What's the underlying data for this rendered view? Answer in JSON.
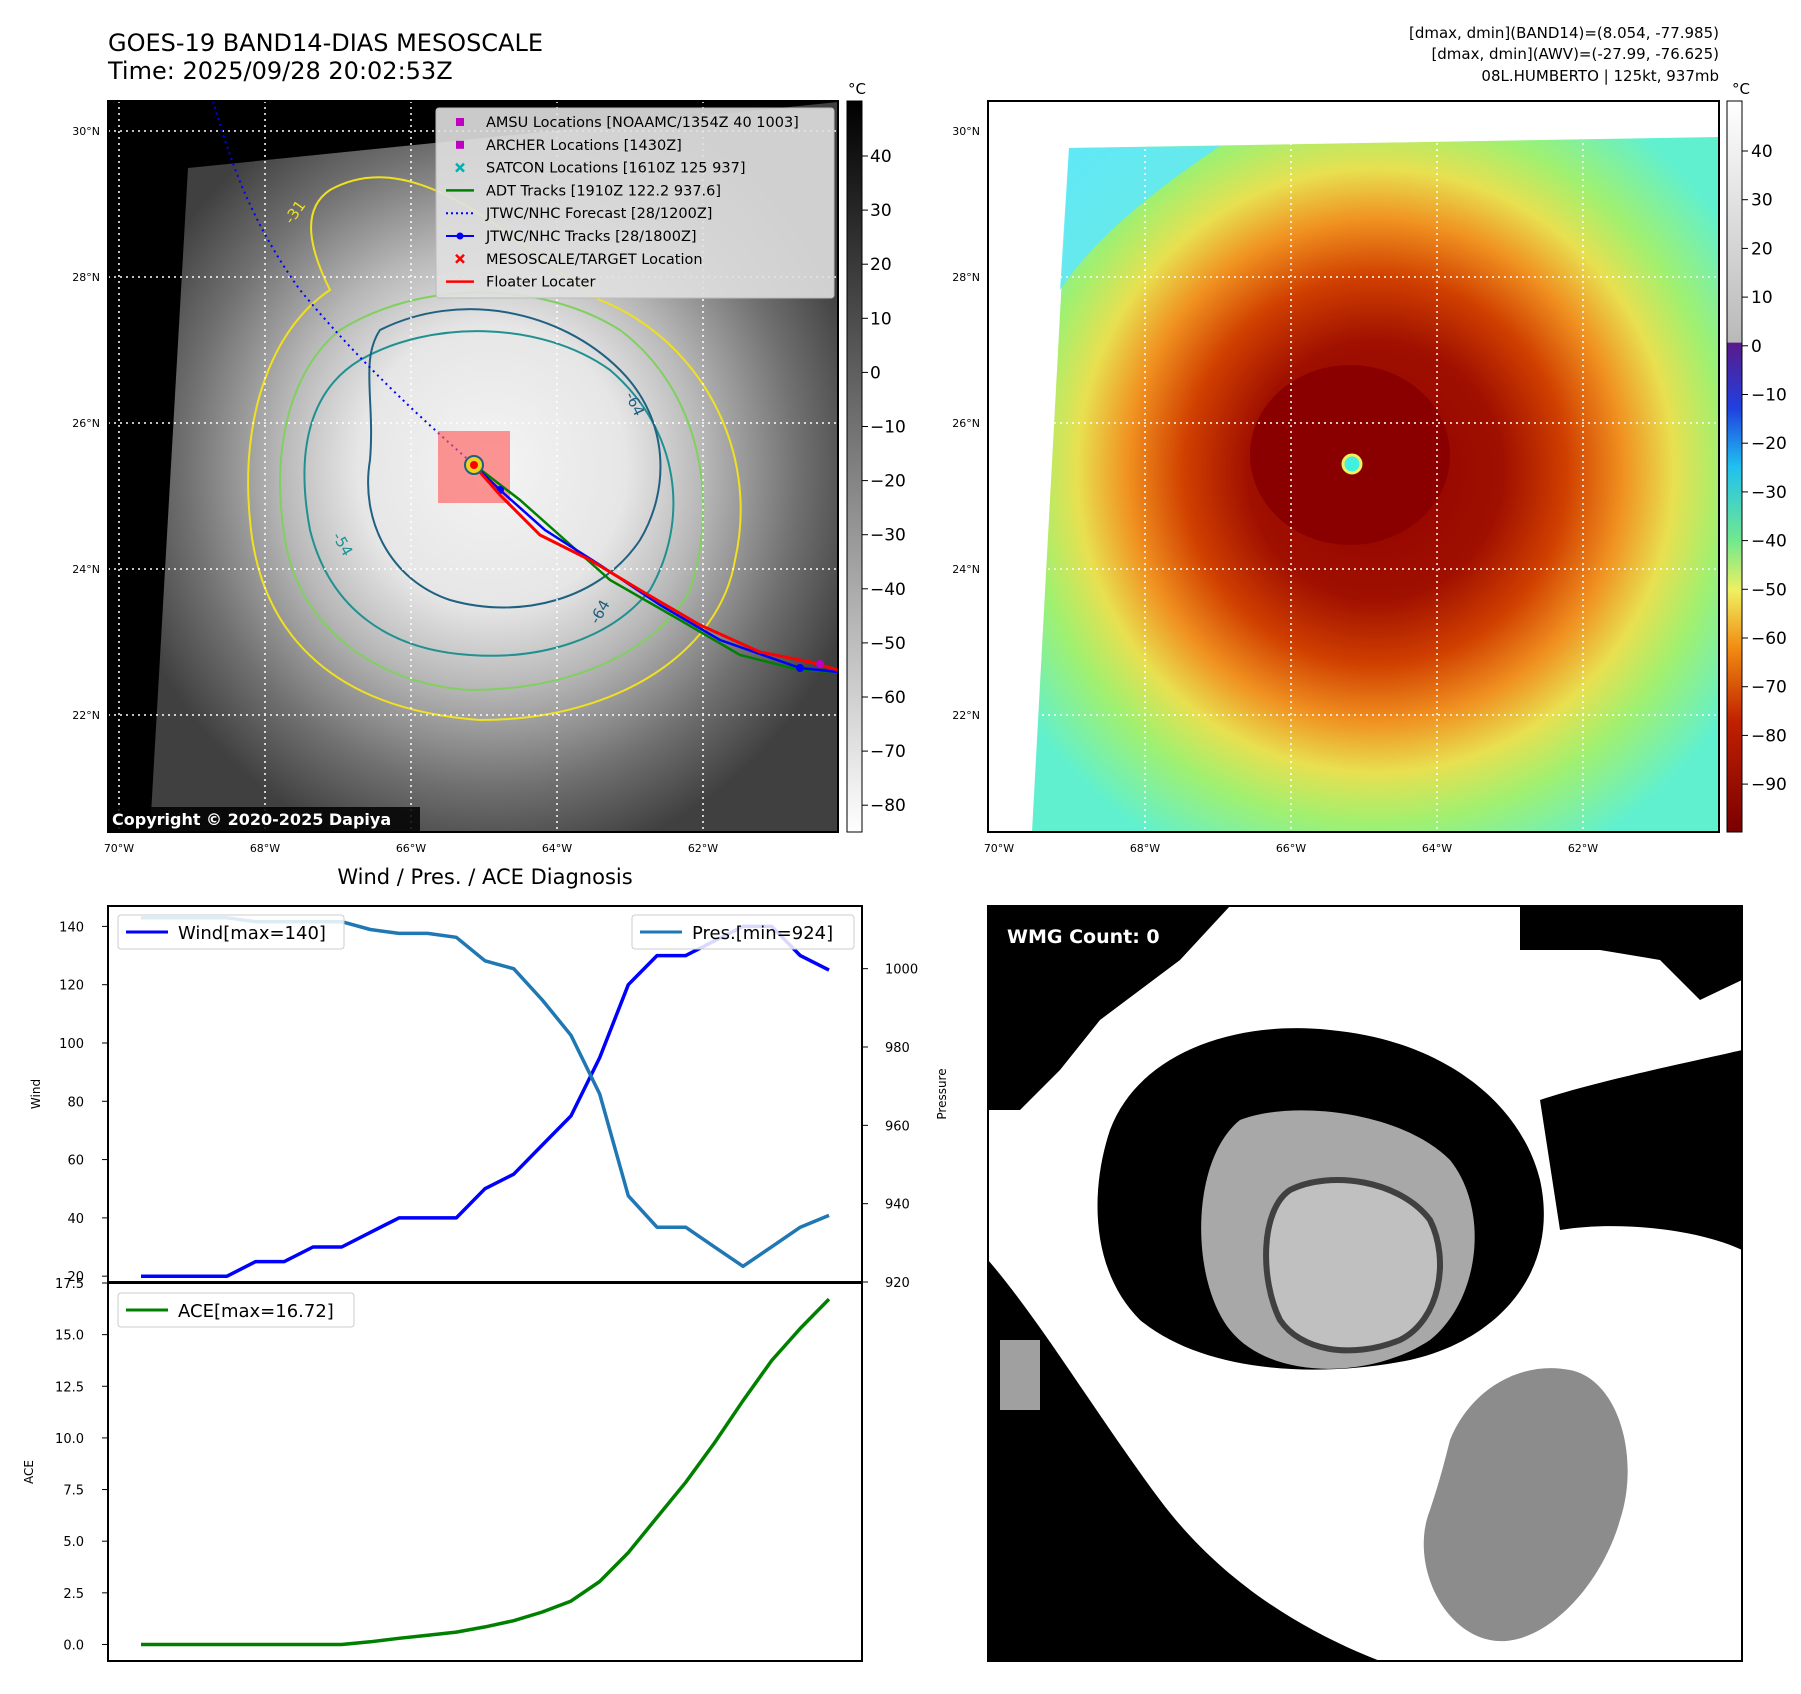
{
  "header": {
    "title_line1": "GOES-19 BAND14-DIAS MESOSCALE",
    "title_line2": "Time: 2025/09/28 20:02:53Z",
    "info_line1": "[dmax, dmin](BAND14)=(8.054, -77.985)",
    "info_line2": "[dmax, dmin](AWV)=(-27.99, -76.625)",
    "info_line3": "08L.HUMBERTO | 125kt, 937mb"
  },
  "map_panels": {
    "lat_labels": [
      "30°N",
      "28°N",
      "26°N",
      "24°N",
      "22°N"
    ],
    "lon_labels": [
      "70°W",
      "68°W",
      "66°W",
      "64°W",
      "62°W"
    ],
    "copyright": "Copyright © 2020-2025 Dapiya",
    "contour_labels": [
      "-31",
      "-54",
      "-64",
      "-64"
    ],
    "left_colorbar": {
      "unit": "°C",
      "ticks": [
        "40",
        "30",
        "20",
        "10",
        "0",
        "−10",
        "−20",
        "−30",
        "−40",
        "−50",
        "−60",
        "−70",
        "−80"
      ]
    },
    "right_colorbar": {
      "unit": "°C",
      "ticks": [
        "40",
        "30",
        "20",
        "10",
        "0",
        "−10",
        "−20",
        "−30",
        "−40",
        "−50",
        "−60",
        "−70",
        "−80",
        "−90"
      ]
    },
    "legend": [
      {
        "label": "AMSU Locations [NOAAMC/1354Z 40 1003]",
        "marker": "square",
        "color": "#c000c0"
      },
      {
        "label": "ARCHER Locations [1430Z]",
        "marker": "square",
        "color": "#c000c0"
      },
      {
        "label": "SATCON Locations [1610Z 125 937]",
        "marker": "x",
        "color": "#00b0b0"
      },
      {
        "label": "ADT Tracks [1910Z 122.2 937.6]",
        "marker": "line",
        "color": "#008000"
      },
      {
        "label": "JTWC/NHC Forecast [28/1200Z]",
        "marker": "dotted",
        "color": "#0000ff"
      },
      {
        "label": "JTWC/NHC Tracks [28/1800Z]",
        "marker": "dotline",
        "color": "#0000ff"
      },
      {
        "label": "MESOSCALE/TARGET Location",
        "marker": "x",
        "color": "#ff0000"
      },
      {
        "label": "Floater Locater",
        "marker": "line",
        "color": "#ff0000"
      }
    ],
    "colors": {
      "contour_yellow": "#f0e020",
      "contour_green": "#80d060",
      "contour_teal": "#209090",
      "contour_dark": "#206080"
    }
  },
  "wmg": {
    "label": "WMG Count: 0"
  },
  "chart_data": [
    {
      "type": "line",
      "title": "Wind / Pres. / ACE Diagnosis",
      "ylabel": "Wind",
      "ylabel_right": "Pressure",
      "x": [
        0,
        1,
        2,
        3,
        4,
        5,
        6,
        7,
        8,
        9,
        10,
        11,
        12,
        13,
        14,
        15,
        16,
        17,
        18,
        19,
        20,
        21,
        22,
        23,
        24
      ],
      "ylim": [
        18,
        147
      ],
      "ylim_right": [
        920,
        1016
      ],
      "yticks": [
        20,
        40,
        60,
        80,
        100,
        120,
        140
      ],
      "yticks_right": [
        920,
        940,
        960,
        980,
        1000
      ],
      "series": [
        {
          "name": "Wind[max=140]",
          "axis": "left",
          "color": "#0000ff",
          "values": [
            20,
            20,
            20,
            20,
            25,
            25,
            30,
            30,
            35,
            40,
            40,
            40,
            50,
            55,
            65,
            75,
            95,
            120,
            130,
            130,
            135,
            140,
            140,
            130,
            125
          ]
        },
        {
          "name": "Pres.[min=924]",
          "axis": "right",
          "color": "#1f77b4",
          "values": [
            1013,
            1013,
            1013,
            1013,
            1012,
            1012,
            1012,
            1012,
            1010,
            1009,
            1009,
            1008,
            1002,
            1000,
            992,
            983,
            968,
            942,
            934,
            934,
            929,
            924,
            929,
            934,
            937
          ]
        }
      ]
    },
    {
      "type": "line",
      "ylabel": "ACE",
      "x": [
        0,
        1,
        2,
        3,
        4,
        5,
        6,
        7,
        8,
        9,
        10,
        11,
        12,
        13,
        14,
        15,
        16,
        17,
        18,
        19,
        20,
        21,
        22,
        23,
        24
      ],
      "ylim": [
        -0.8,
        17.5
      ],
      "yticks": [
        0.0,
        2.5,
        5.0,
        7.5,
        10.0,
        12.5,
        15.0,
        17.5
      ],
      "series": [
        {
          "name": "ACE[max=16.72]",
          "color": "#008000",
          "values": [
            0,
            0,
            0,
            0,
            0,
            0,
            0,
            0,
            0.13,
            0.3,
            0.45,
            0.6,
            0.85,
            1.15,
            1.57,
            2.1,
            3.05,
            4.45,
            6.15,
            7.85,
            9.75,
            11.8,
            13.75,
            15.3,
            16.72
          ]
        }
      ]
    }
  ]
}
